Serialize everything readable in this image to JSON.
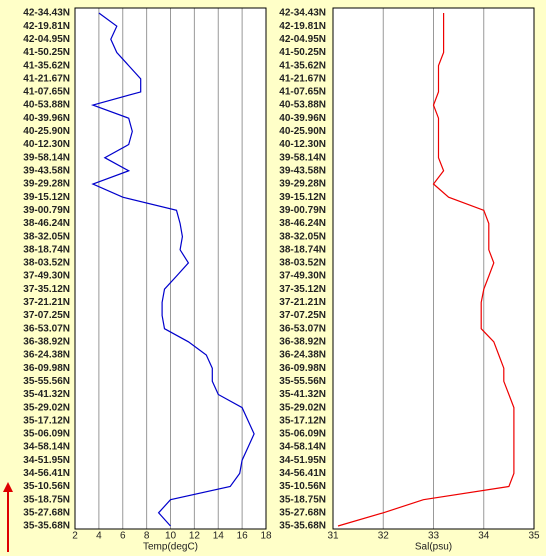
{
  "chart_data": [
    {
      "type": "line",
      "x_label": "Temp(degC)",
      "categories": [
        "42-34.43N",
        "42-19.81N",
        "42-04.95N",
        "41-50.25N",
        "41-35.62N",
        "41-21.67N",
        "41-07.65N",
        "40-53.88N",
        "40-39.96N",
        "40-25.90N",
        "40-12.30N",
        "39-58.14N",
        "39-43.58N",
        "39-29.28N",
        "39-15.12N",
        "39-00.79N",
        "38-46.24N",
        "38-32.05N",
        "38-18.74N",
        "38-03.52N",
        "37-49.30N",
        "37-35.12N",
        "37-21.21N",
        "37-07.25N",
        "36-53.07N",
        "36-38.92N",
        "36-24.38N",
        "36-09.98N",
        "35-55.56N",
        "35-41.32N",
        "35-29.02N",
        "35-17.12N",
        "35-06.09N",
        "34-58.14N",
        "34-51.95N",
        "34-56.41N",
        "35-10.56N",
        "35-18.75N",
        "35-27.68N",
        "35-35.68N"
      ],
      "series": [
        {
          "color": "#0000cc",
          "values": [
            4.0,
            5.5,
            5.0,
            5.5,
            6.5,
            7.5,
            7.5,
            3.5,
            6.5,
            6.8,
            6.5,
            4.5,
            6.5,
            3.5,
            6.0,
            10.5,
            10.8,
            11.0,
            10.8,
            11.5,
            10.5,
            9.5,
            9.3,
            9.3,
            9.5,
            11.5,
            13.0,
            13.5,
            13.5,
            14.0,
            16.0,
            16.5,
            17.0,
            16.5,
            16.0,
            15.8,
            15.0,
            10.0,
            9.0,
            10.0
          ]
        }
      ],
      "xlim": [
        2,
        18
      ],
      "xticks": [
        2,
        4,
        6,
        8,
        10,
        12,
        14,
        16,
        18
      ],
      "grid": true
    },
    {
      "type": "line",
      "x_label": "Sal(psu)",
      "categories": [
        "42-34.43N",
        "42-19.81N",
        "42-04.95N",
        "41-50.25N",
        "41-35.62N",
        "41-21.67N",
        "41-07.65N",
        "40-53.88N",
        "40-39.96N",
        "40-25.90N",
        "40-12.30N",
        "39-58.14N",
        "39-43.58N",
        "39-29.28N",
        "39-15.12N",
        "39-00.79N",
        "38-46.24N",
        "38-32.05N",
        "38-18.74N",
        "38-03.52N",
        "37-49.30N",
        "37-35.12N",
        "37-21.21N",
        "37-07.25N",
        "36-53.07N",
        "36-38.92N",
        "36-24.38N",
        "36-09.98N",
        "35-55.56N",
        "35-41.32N",
        "35-29.02N",
        "35-17.12N",
        "35-06.09N",
        "34-58.14N",
        "34-51.95N",
        "34-56.41N",
        "35-10.56N",
        "35-18.75N",
        "35-27.68N",
        "35-35.68N"
      ],
      "series": [
        {
          "color": "#ee0000",
          "values": [
            33.2,
            33.2,
            33.2,
            33.2,
            33.1,
            33.1,
            33.1,
            33.0,
            33.1,
            33.1,
            33.1,
            33.1,
            33.2,
            33.0,
            33.3,
            34.0,
            34.1,
            34.1,
            34.1,
            34.2,
            34.1,
            34.0,
            33.95,
            33.95,
            33.95,
            34.2,
            34.3,
            34.4,
            34.4,
            34.5,
            34.6,
            34.6,
            34.6,
            34.6,
            34.6,
            34.6,
            34.5,
            32.8,
            32.0,
            31.1
          ]
        }
      ],
      "xlim": [
        31,
        35
      ],
      "xticks": [
        31,
        32,
        33,
        34,
        35
      ],
      "grid": true
    }
  ]
}
